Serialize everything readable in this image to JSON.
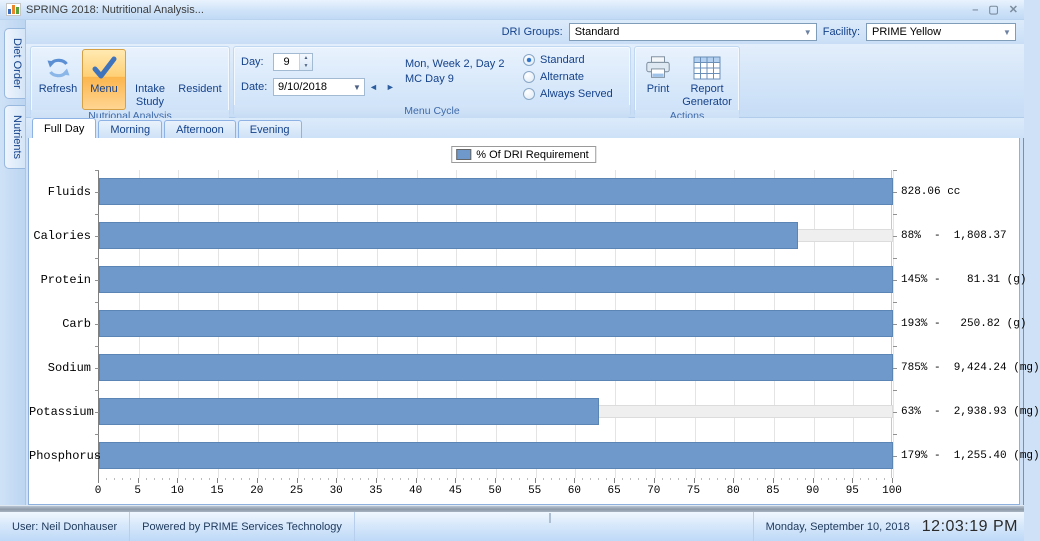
{
  "window": {
    "title": "SPRING 2018: Nutritional Analysis...",
    "minimize": "–",
    "maximize": "▢",
    "close": "✕"
  },
  "toolbar": {
    "dri_groups_label": "DRI Groups:",
    "dri_groups_value": "Standard",
    "facility_label": "Facility:",
    "facility_value": "PRIME Yellow",
    "dropdown_glyph": "▼"
  },
  "side_tabs": {
    "diet_order": "Diet Order",
    "nutrients": "Nutrients"
  },
  "ribbon": {
    "analysis_group": {
      "title": "Nutrional Analysis",
      "refresh": "Refresh",
      "menu": "Menu",
      "intake_study": "Intake Study",
      "resident": "Resident"
    },
    "menu_cycle_group": {
      "title": "Menu Cycle",
      "day_label": "Day:",
      "day_value": "9",
      "spin_up": "▲",
      "spin_down": "▼",
      "date_label": "Date:",
      "date_value": "9/10/2018",
      "date_dropdown_glyph": "▼",
      "prev_glyph": "◄",
      "next_glyph": "►",
      "info_line1": "Mon, Week 2, Day 2",
      "info_line2": "MC Day 9",
      "radios": [
        {
          "label": "Standard",
          "selected": true
        },
        {
          "label": "Alternate",
          "selected": false
        },
        {
          "label": "Always Served",
          "selected": false
        }
      ]
    },
    "actions_group": {
      "title": "Actions",
      "print": "Print",
      "report_generator": "Report Generator"
    }
  },
  "view_tabs": [
    {
      "label": "Full Day",
      "active": true
    },
    {
      "label": "Morning",
      "active": false
    },
    {
      "label": "Afternoon",
      "active": false
    },
    {
      "label": "Evening",
      "active": false
    }
  ],
  "chart_data": {
    "type": "bar",
    "orientation": "horizontal",
    "legend": "% Of DRI Requirement",
    "legend_position": "top-center",
    "grid": true,
    "xlim": [
      0,
      100
    ],
    "xticks": [
      0,
      5,
      10,
      15,
      20,
      25,
      30,
      35,
      40,
      45,
      50,
      55,
      60,
      65,
      70,
      75,
      80,
      85,
      90,
      95,
      100
    ],
    "bar_color": "#6e99ca",
    "bar_border_color": "#5b85b5",
    "track_color": "#efefef",
    "categories": [
      "Fluids",
      "Calories",
      "Protein",
      "Carb",
      "Sodium",
      "Potassium",
      "Phosphorus"
    ],
    "rows": [
      {
        "category": "Fluids",
        "bar_value": 100,
        "percent": null,
        "amount": "828.06",
        "unit": "cc",
        "value_label": "828.06 cc"
      },
      {
        "category": "Calories",
        "bar_value": 88,
        "percent": 88,
        "amount": "1,808.37",
        "unit": "",
        "value_label": "88%  -  1,808.37"
      },
      {
        "category": "Protein",
        "bar_value": 100,
        "percent": 145,
        "amount": "81.31",
        "unit": "g",
        "value_label": "145% -    81.31 (g)"
      },
      {
        "category": "Carb",
        "bar_value": 100,
        "percent": 193,
        "amount": "250.82",
        "unit": "g",
        "value_label": "193% -   250.82 (g)"
      },
      {
        "category": "Sodium",
        "bar_value": 100,
        "percent": 785,
        "amount": "9,424.24",
        "unit": "mg",
        "value_label": "785% -  9,424.24 (mg)"
      },
      {
        "category": "Potassium",
        "bar_value": 63,
        "percent": 63,
        "amount": "2,938.93",
        "unit": "mg",
        "value_label": "63%  -  2,938.93 (mg)"
      },
      {
        "category": "Phosphorus",
        "bar_value": 100,
        "percent": 179,
        "amount": "1,255.40",
        "unit": "mg",
        "value_label": "179% -  1,255.40 (mg)"
      }
    ]
  },
  "status_bar": {
    "user": "User: Neil Donhauser",
    "powered": "Powered by PRIME Services Technology",
    "date": "Monday, September 10, 2018",
    "time": "12:03:19 PM"
  }
}
